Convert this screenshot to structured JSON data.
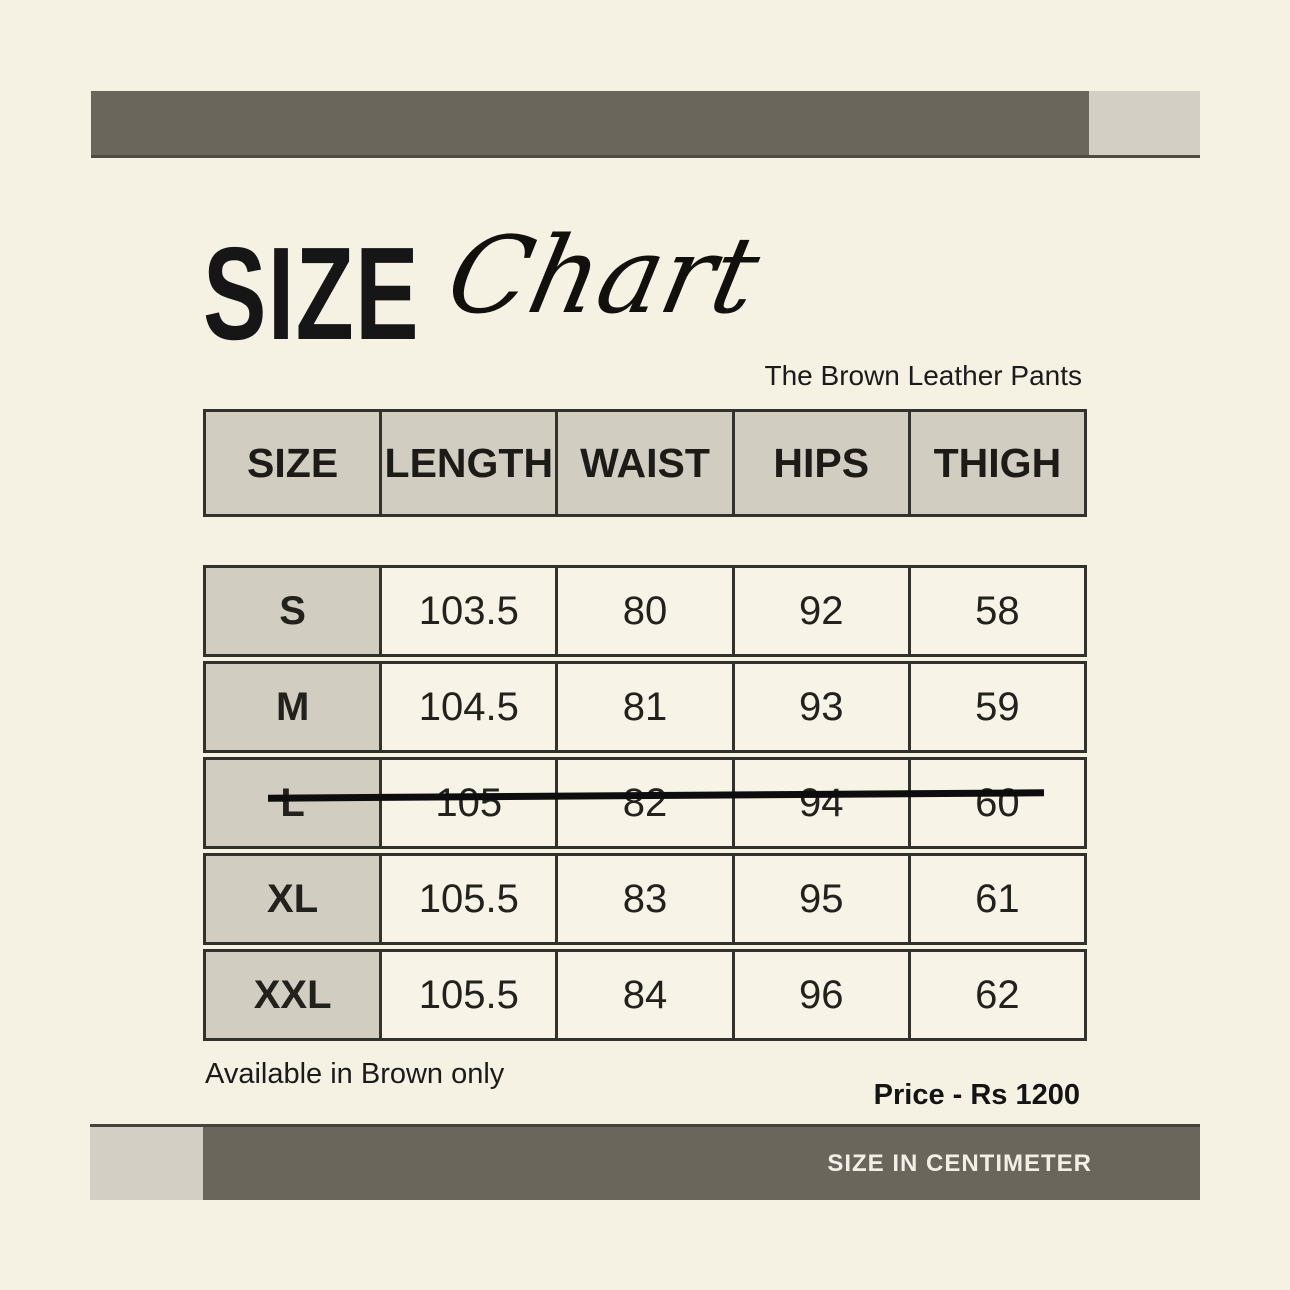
{
  "title": {
    "main": "SIZE",
    "script": "Chart"
  },
  "product": {
    "name": "The Brown Leather Pants"
  },
  "size_table": {
    "headers": [
      "SIZE",
      "LENGTH",
      "WAIST",
      "HIPS",
      "THIGH"
    ],
    "rows": [
      {
        "size": "S",
        "values": [
          "103.5",
          "80",
          "92",
          "58"
        ],
        "struck_out": false
      },
      {
        "size": "M",
        "values": [
          "104.5",
          "81",
          "93",
          "59"
        ],
        "struck_out": false
      },
      {
        "size": "L",
        "values": [
          "105",
          "82",
          "94",
          "60"
        ],
        "struck_out": true
      },
      {
        "size": "XL",
        "values": [
          "105.5",
          "83",
          "95",
          "61"
        ],
        "struck_out": false
      },
      {
        "size": "XXL",
        "values": [
          "105.5",
          "84",
          "96",
          "62"
        ],
        "struck_out": false
      }
    ]
  },
  "footer": {
    "availability": "Available in Brown only",
    "price": "Price - Rs 1200",
    "unit_label": "SIZE IN CENTIMETER"
  },
  "colors": {
    "background": "#f5f1e3",
    "bar_dark": "#6a665c",
    "bar_light": "#d3cfc4",
    "cell_gray": "#d1cdc1",
    "cell_cream": "#f7f3e7",
    "border": "#33312b",
    "text": "#1b1b1b",
    "bar_text": "#f2efe7",
    "strike": "#0d0d0d"
  }
}
